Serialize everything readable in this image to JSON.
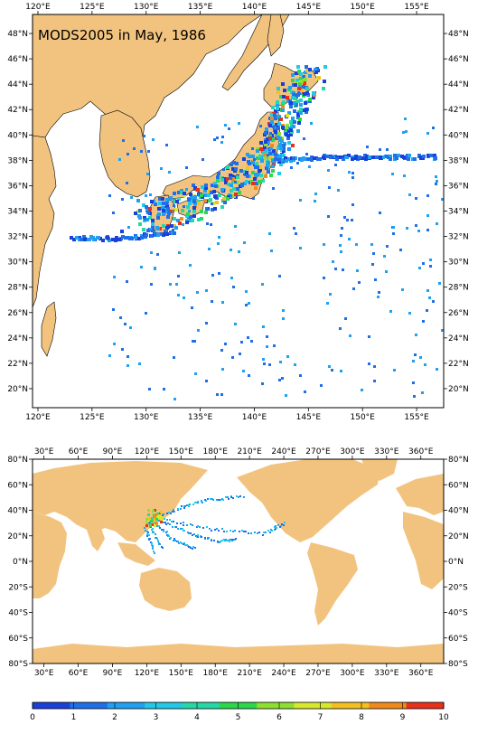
{
  "title": "MODS2005 in May, 1986",
  "colors": {
    "land": "#f2c37f",
    "ocean": "#ffffff",
    "frame": "#000000"
  },
  "map_top": {
    "lon_range": [
      119.5,
      157.5
    ],
    "lat_range": [
      18.5,
      49.5
    ],
    "lon_ticks": [
      120,
      125,
      130,
      135,
      140,
      145,
      150,
      155
    ],
    "lat_ticks": [
      20,
      22,
      24,
      26,
      28,
      30,
      32,
      34,
      36,
      38,
      40,
      42,
      44,
      46,
      48
    ],
    "lon_labels": [
      "120°E",
      "125°E",
      "130°E",
      "135°E",
      "140°E",
      "145°E",
      "150°E",
      "155°E"
    ],
    "lat_labels": [
      "20°N",
      "22°N",
      "24°N",
      "26°N",
      "28°N",
      "30°N",
      "32°N",
      "34°N",
      "36°N",
      "38°N",
      "40°N",
      "42°N",
      "44°N",
      "46°N",
      "48°N"
    ]
  },
  "map_bottom": {
    "lon_range": [
      20,
      380
    ],
    "lat_range": [
      -80,
      80
    ],
    "lon_ticks": [
      30,
      60,
      90,
      120,
      150,
      180,
      210,
      240,
      270,
      300,
      330,
      360
    ],
    "lat_ticks": [
      -80,
      -60,
      -40,
      -20,
      0,
      20,
      40,
      60,
      80
    ],
    "lon_labels": [
      "30°E",
      "60°E",
      "90°E",
      "120°E",
      "150°E",
      "180°E",
      "210°E",
      "240°E",
      "270°E",
      "300°E",
      "330°E",
      "360°E"
    ],
    "lat_labels": [
      "80°S",
      "60°S",
      "40°S",
      "20°S",
      "0°N",
      "20°N",
      "40°N",
      "60°N",
      "80°N"
    ]
  },
  "colorbar": {
    "labels": [
      "0",
      "1",
      "2",
      "3",
      "4",
      "5",
      "6",
      "7",
      "8",
      "9",
      "10"
    ],
    "colors": [
      "#1a40d9",
      "#1f6fe8",
      "#1fa0f0",
      "#22c8e8",
      "#24d8a8",
      "#2ad84a",
      "#8ee030",
      "#d8e82a",
      "#f4c020",
      "#f08a1a",
      "#e8301a"
    ]
  }
}
